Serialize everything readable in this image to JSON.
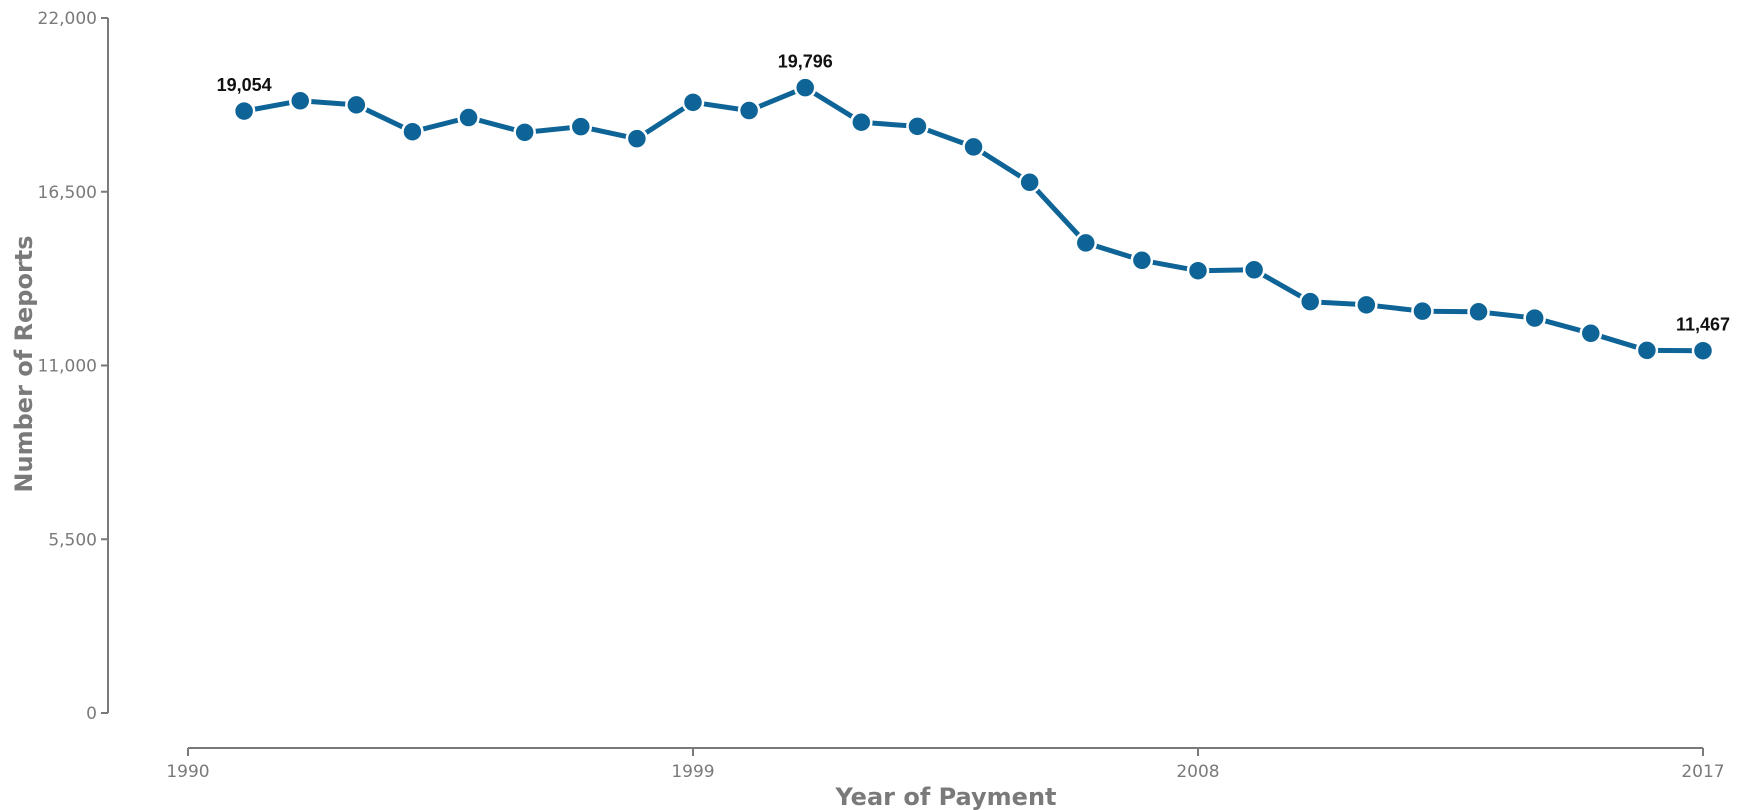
{
  "chart_data": {
    "type": "line",
    "xlabel": "Year of Payment",
    "ylabel": "Number of Reports",
    "x": [
      1991,
      1992,
      1993,
      1994,
      1995,
      1996,
      1997,
      1998,
      1999,
      2000,
      2001,
      2002,
      2003,
      2004,
      2005,
      2006,
      2007,
      2008,
      2009,
      2010,
      2011,
      2012,
      2013,
      2014,
      2015,
      2016,
      2017
    ],
    "series": [
      {
        "values": [
          19054,
          19380,
          19250,
          18400,
          18850,
          18380,
          18560,
          18180,
          19330,
          19070,
          19796,
          18700,
          18570,
          17920,
          16800,
          14880,
          14330,
          14000,
          14030,
          13020,
          12920,
          12720,
          12700,
          12500,
          12020,
          11480,
          11467
        ],
        "color": "#0e6496",
        "labels": [
          {
            "x": 1991,
            "text": "19,054"
          },
          {
            "x": 2001,
            "text": "19,796"
          },
          {
            "x": 2017,
            "text": "11,467"
          }
        ]
      }
    ],
    "xlim": [
      1990,
      2017
    ],
    "ylim": [
      0,
      22000
    ],
    "xticks": [
      1990,
      1999,
      2008,
      2017
    ],
    "xtick_labels": [
      "1990",
      "1999",
      "2008",
      "2017"
    ],
    "yticks": [
      0,
      5500,
      11000,
      16500,
      22000
    ],
    "ytick_labels": [
      "0",
      "5,500",
      "11,000",
      "16,500",
      "22,000"
    ],
    "grid": false,
    "axis_color": "#7a7a7a"
  }
}
